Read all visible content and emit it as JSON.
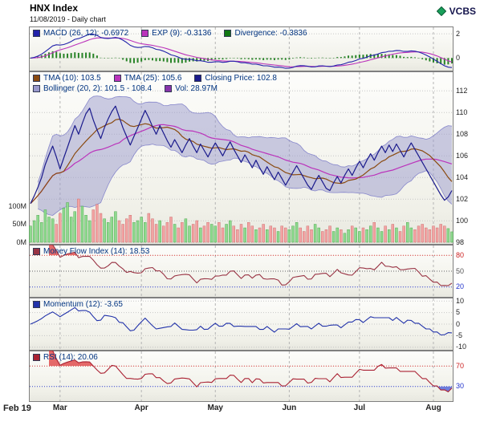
{
  "header": {
    "title": "HNX Index",
    "subtitle": "11/08/2019 - Daily chart",
    "brand": "VCBS"
  },
  "legends": {
    "macd": [
      {
        "text": "MACD (26, 12): -0.6972",
        "color": "#2222aa"
      },
      {
        "text": "EXP (9): -0.3136",
        "color": "#bb33bb"
      },
      {
        "text": "Divergence: -0.3836",
        "color": "#117711"
      }
    ],
    "price_row1": [
      {
        "text": "TMA (10): 103.5",
        "color": "#8a4a10"
      },
      {
        "text": "TMA (25): 105.6",
        "color": "#bb33bb"
      },
      {
        "text": "Closing Price: 102.8",
        "color": "#1a1a8c"
      }
    ],
    "price_row2": [
      {
        "text": "Bollinger (20, 2): 101.5 - 108.4",
        "color": "#9999cc"
      },
      {
        "text": "Vol: 28.97M",
        "color": "#8833aa"
      }
    ],
    "mfi": [
      {
        "text": "Money Flow Index (14): 18.53",
        "color": "#993344"
      }
    ],
    "momentum": [
      {
        "text": "Momentum (12): -3.65",
        "color": "#2233aa"
      }
    ],
    "rsi": [
      {
        "text": "RSI (14): 20.06",
        "color": "#aa2233"
      }
    ]
  },
  "colors": {
    "close": "#1a1a8c",
    "tma10": "#8a4a10",
    "tma25": "#bb33bb",
    "bollinger_fill": "#9999cc",
    "bollinger_edge": "#8888cc",
    "vol_up": "#8fd98f",
    "vol_up_edge": "#3d9e3d",
    "vol_down": "#f2a3a3",
    "vol_down_edge": "#c96060",
    "macd": "#2222aa",
    "exp": "#bb33bb",
    "divergence": "#117711",
    "mfi": "#993344",
    "momentum": "#2233aa",
    "rsi": "#aa2233",
    "over_fill": "#e05050",
    "under_fill": "#5868d8",
    "grid": "#c2c2c2",
    "month_grid": "#b4b4b4",
    "panel_border": "#7f7f7f"
  },
  "chart_data": {
    "type": "line",
    "title": "HNX Index",
    "subtitle": "11/08/2019 - Daily chart",
    "x_axis": {
      "labels": [
        "Feb 19",
        "Mar",
        "Apr",
        "May",
        "Jun",
        "Jul",
        "Aug"
      ],
      "start_indices": [
        0,
        8,
        30,
        50,
        70,
        89,
        109
      ]
    },
    "close": [
      101.6,
      102.3,
      103.1,
      104.0,
      105.2,
      106.1,
      106.9,
      105.9,
      104.8,
      105.8,
      106.8,
      107.8,
      108.8,
      108.0,
      109.0,
      109.9,
      110.4,
      109.3,
      108.4,
      107.6,
      108.6,
      109.4,
      110.1,
      110.6,
      109.6,
      108.6,
      107.8,
      107.0,
      107.8,
      108.6,
      109.4,
      110.2,
      109.5,
      108.7,
      108.0,
      108.8,
      108.1,
      107.4,
      106.8,
      107.5,
      106.9,
      106.3,
      107.0,
      107.6,
      106.9,
      106.3,
      107.1,
      106.5,
      105.9,
      106.6,
      107.2,
      106.6,
      106.0,
      106.7,
      107.3,
      106.6,
      106.0,
      105.4,
      106.1,
      105.5,
      104.9,
      105.6,
      104.9,
      104.3,
      105.0,
      104.4,
      103.8,
      104.5,
      103.9,
      103.3,
      103.9,
      104.5,
      105.1,
      104.5,
      103.9,
      103.3,
      102.9,
      103.6,
      104.2,
      103.6,
      103.0,
      102.8,
      103.5,
      104.1,
      103.5,
      104.2,
      104.8,
      104.2,
      104.9,
      105.5,
      104.9,
      105.6,
      106.2,
      105.6,
      106.3,
      106.9,
      106.3,
      107.0,
      106.4,
      107.1,
      106.5,
      105.9,
      106.6,
      107.2,
      106.6,
      106.0,
      105.4,
      104.8,
      104.2,
      103.6,
      103.0,
      102.4,
      101.9,
      102.2,
      102.8
    ],
    "volume_millions": [
      45,
      60,
      75,
      55,
      90,
      70,
      65,
      50,
      80,
      95,
      110,
      70,
      85,
      120,
      100,
      75,
      60,
      90,
      105,
      80,
      65,
      55,
      70,
      85,
      60,
      50,
      65,
      75,
      55,
      60,
      70,
      55,
      80,
      65,
      50,
      60,
      45,
      55,
      70,
      50,
      40,
      55,
      65,
      45,
      50,
      60,
      40,
      45,
      55,
      50,
      45,
      55,
      40,
      50,
      60,
      45,
      35,
      50,
      40,
      55,
      45,
      35,
      40,
      50,
      35,
      45,
      40,
      30,
      45,
      40,
      35,
      45,
      55,
      40,
      30,
      45,
      35,
      50,
      40,
      30,
      35,
      45,
      30,
      40,
      35,
      25,
      35,
      45,
      40,
      30,
      40,
      35,
      45,
      55,
      40,
      30,
      45,
      35,
      50,
      40,
      30,
      45,
      55,
      40,
      35,
      45,
      50,
      40,
      35,
      45,
      40,
      50,
      45,
      38,
      29
    ],
    "macd_panel": {
      "params": "26, 12, 9",
      "macd_current": -0.6972,
      "exp_current": -0.3136,
      "divergence_current": -0.3836,
      "ylim": [
        -1.1,
        2.6
      ],
      "yticks": [
        2,
        0
      ]
    },
    "price_panel": {
      "tma10_current": 103.5,
      "tma25_current": 105.6,
      "closing_price_current": 102.8,
      "bollinger_current": "101.5 - 108.4",
      "volume_current": "28.97M",
      "ylim": [
        97.8,
        113.8
      ],
      "yticks": [
        112,
        110,
        108,
        106,
        104,
        102,
        100,
        98
      ],
      "volume_ticks": [
        {
          "label": "100M",
          "value": 100
        },
        {
          "label": "50M",
          "value": 50
        },
        {
          "label": "0M",
          "value": 0
        }
      ]
    },
    "mfi_panel": {
      "period": 14,
      "current": 18.53,
      "ylim": [
        0,
        100
      ],
      "yticks": [
        {
          "value": 80,
          "color": "#cc2222"
        },
        {
          "value": 50,
          "color": "#555555"
        },
        {
          "value": 20,
          "color": "#2233cc"
        }
      ]
    },
    "momentum_panel": {
      "period": 12,
      "current": -3.65,
      "ylim": [
        -11.5,
        11.5
      ],
      "yticks": [
        10,
        5,
        0,
        -5,
        -10
      ]
    },
    "rsi_panel": {
      "period": 14,
      "current": 20.06,
      "ylim": [
        0,
        100
      ],
      "yticks": [
        {
          "value": 70,
          "color": "#cc2222"
        },
        {
          "value": 30,
          "color": "#2233cc"
        }
      ]
    }
  }
}
